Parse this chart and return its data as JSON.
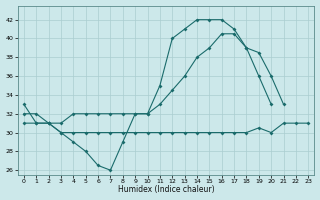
{
  "xlabel": "Humidex (Indice chaleur)",
  "bg_color": "#cce8ea",
  "grid_color": "#aacdd0",
  "line_color": "#1a6b6b",
  "xlim": [
    -0.5,
    23.5
  ],
  "ylim": [
    25.5,
    43.5
  ],
  "yticks": [
    26,
    28,
    30,
    32,
    34,
    36,
    38,
    40,
    42
  ],
  "xticks": [
    0,
    1,
    2,
    3,
    4,
    5,
    6,
    7,
    8,
    9,
    10,
    11,
    12,
    13,
    14,
    15,
    16,
    17,
    18,
    19,
    20,
    21,
    22,
    23
  ],
  "line1_x": [
    0,
    1,
    2,
    3,
    4,
    5,
    6,
    7,
    8,
    9,
    10,
    11,
    12,
    13,
    14,
    15,
    16,
    17,
    18,
    19,
    20
  ],
  "line1_y": [
    33,
    31,
    31,
    30,
    29,
    28,
    26.5,
    26,
    29,
    32,
    32,
    35,
    40,
    41,
    42,
    42,
    42,
    41,
    39,
    36,
    33
  ],
  "line2_x": [
    0,
    1,
    2,
    3,
    4,
    5,
    6,
    7,
    8,
    9,
    10,
    11,
    12,
    13,
    14,
    15,
    16,
    17,
    18,
    19,
    20,
    21
  ],
  "line2_y": [
    32,
    32,
    31,
    31,
    32,
    32,
    32,
    32,
    32,
    32,
    32,
    33,
    34.5,
    36,
    38,
    39,
    40.5,
    40.5,
    39,
    38.5,
    36,
    33
  ],
  "line3_x": [
    0,
    1,
    2,
    3,
    4,
    5,
    6,
    7,
    8,
    9,
    10,
    11,
    12,
    13,
    14,
    15,
    16,
    17,
    18,
    19,
    20,
    21,
    22,
    23
  ],
  "line3_y": [
    31,
    31,
    31,
    30,
    30,
    30,
    30,
    30,
    30,
    30,
    30,
    30,
    30,
    30,
    30,
    30,
    30,
    30,
    30,
    30.5,
    30,
    31,
    31,
    31
  ]
}
